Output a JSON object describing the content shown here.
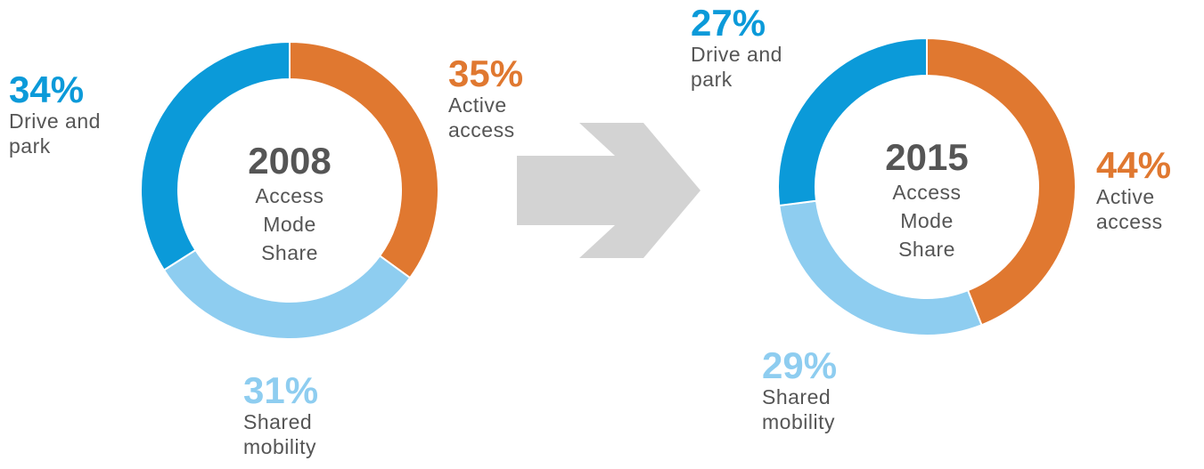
{
  "chart_data": [
    {
      "type": "donut",
      "title": "2008",
      "subtitle": "Access Mode Share",
      "categories": [
        "Active access",
        "Shared mobility",
        "Drive and park"
      ],
      "values": [
        35,
        31,
        34
      ],
      "value_labels": [
        "35%",
        "31%",
        "34%"
      ],
      "colors": [
        "#e07830",
        "#8ecdf0",
        "#0b9ad9"
      ]
    },
    {
      "type": "donut",
      "title": "2015",
      "subtitle": "Access Mode Share",
      "categories": [
        "Active access",
        "Shared mobility",
        "Drive and park"
      ],
      "values": [
        44,
        29,
        27
      ],
      "value_labels": [
        "44%",
        "29%",
        "27%"
      ],
      "colors": [
        "#e07830",
        "#8ecdf0",
        "#0b9ad9"
      ]
    }
  ]
}
